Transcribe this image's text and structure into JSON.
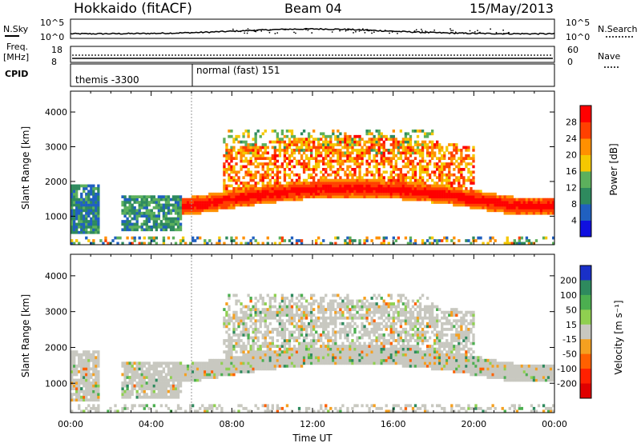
{
  "header": {
    "title": "Hokkaido (fitACF)",
    "beam": "Beam 04",
    "date": "15/May/2013"
  },
  "top_panels": {
    "nsky_label": "N.Sky",
    "nsearch_label": "N.Search",
    "nsky_ticks": [
      "10^5",
      "10^0"
    ],
    "nsearch_ticks": [
      "10^5",
      "10^0"
    ],
    "freq_label": "Freq.",
    "freq_unit": "[MHz]",
    "freq_ticks": [
      "18",
      "8"
    ],
    "nave_label": "Nave",
    "nave_ticks": [
      "60",
      "0"
    ],
    "cpid_label": "CPID",
    "cpid_segments": [
      "themis -3300",
      "normal (fast) 151"
    ]
  },
  "chart_data": [
    {
      "type": "heatmap",
      "title": "Power",
      "ylabel": "Slant Range [km]",
      "xlabel": "",
      "xlim": [
        "00:00",
        "24:00"
      ],
      "ylim": [
        180,
        4600
      ],
      "y_ticks": [
        1000,
        2000,
        3000,
        4000
      ],
      "colorbar": {
        "label": "Power [dB]",
        "ticks": [
          4,
          8,
          12,
          16,
          20,
          24,
          28
        ],
        "range": [
          0,
          32
        ],
        "colors": [
          "#1010e0",
          "#2060c0",
          "#2e8a5e",
          "#5cb05c",
          "#f5c800",
          "#ff9000",
          "#ff4000",
          "#ff0000"
        ]
      }
    },
    {
      "type": "heatmap",
      "title": "Velocity",
      "ylabel": "Slant Range [km]",
      "xlabel": "Time UT",
      "xlim": [
        "00:00",
        "24:00"
      ],
      "ylim": [
        180,
        4600
      ],
      "y_ticks": [
        1000,
        2000,
        3000,
        4000
      ],
      "colorbar": {
        "label": "Velocity [m s⁻¹]",
        "ticks": [
          200,
          100,
          50,
          15,
          -15,
          -50,
          -100,
          -200
        ],
        "colors": [
          "#1a30c8",
          "#2e8a5e",
          "#4caf50",
          "#8fd050",
          "#c8c8c0",
          "#f5a020",
          "#ff6000",
          "#ff2000",
          "#e00000"
        ],
        "ground_scatter": "#c8c8c0"
      }
    }
  ],
  "x_ticks": [
    "00:00",
    "04:00",
    "08:00",
    "12:00",
    "16:00",
    "20:00",
    "00:00"
  ]
}
